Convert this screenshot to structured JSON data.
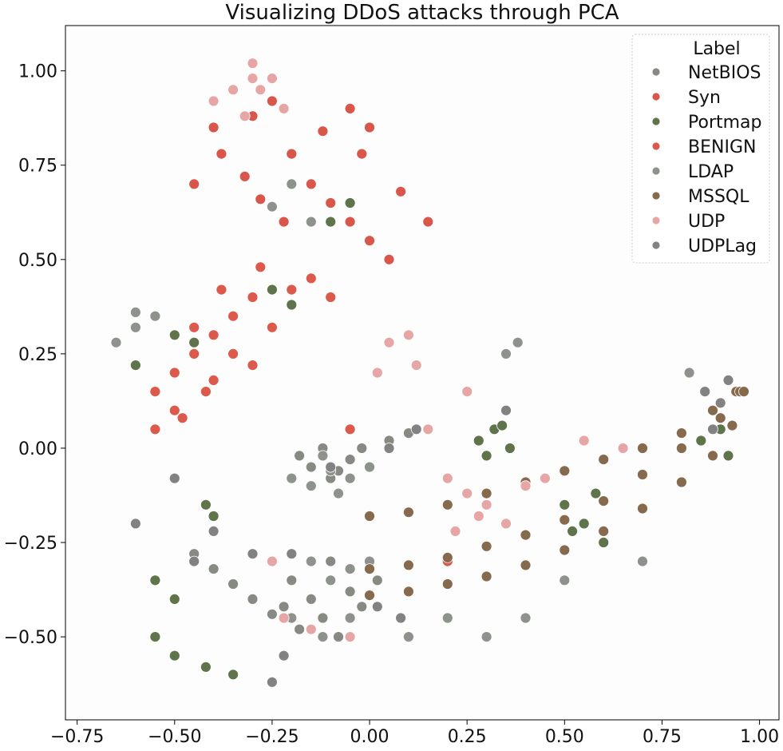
{
  "chart_data": {
    "type": "scatter",
    "title": "Visualizing DDoS attacks through PCA",
    "xlabel": "",
    "ylabel": "",
    "xlim": [
      -0.78,
      1.05
    ],
    "ylim": [
      -0.72,
      1.12
    ],
    "grid": false,
    "legend": {
      "title": "Label",
      "placement": "top-right",
      "entries": [
        "NetBIOS",
        "Syn",
        "Portmap",
        "BENIGN",
        "LDAP",
        "MSSQL",
        "UDP",
        "UDPLag"
      ]
    },
    "x_ticks": [
      {
        "value": -0.75,
        "label": "−0.75"
      },
      {
        "value": -0.5,
        "label": "−0.50"
      },
      {
        "value": -0.25,
        "label": "−0.25"
      },
      {
        "value": 0.0,
        "label": "0.00"
      },
      {
        "value": 0.25,
        "label": "0.25"
      },
      {
        "value": 0.5,
        "label": "0.50"
      },
      {
        "value": 0.75,
        "label": "0.75"
      },
      {
        "value": 1.0,
        "label": "1.00"
      }
    ],
    "y_ticks": [
      {
        "value": -0.5,
        "label": "−0.50"
      },
      {
        "value": -0.25,
        "label": "−0.25"
      },
      {
        "value": 0.0,
        "label": "0.00"
      },
      {
        "value": 0.25,
        "label": "0.25"
      },
      {
        "value": 0.5,
        "label": "0.50"
      },
      {
        "value": 0.75,
        "label": "0.75"
      },
      {
        "value": 1.0,
        "label": "1.00"
      }
    ],
    "series": [
      {
        "name": "NetBIOS",
        "color": "#878a83",
        "points": [
          [
            -0.15,
            -0.05
          ],
          [
            -0.1,
            -0.08
          ],
          [
            -0.05,
            -0.03
          ],
          [
            -0.12,
            0.0
          ],
          [
            -0.08,
            -0.06
          ],
          [
            -0.18,
            -0.02
          ],
          [
            -0.02,
            0.0
          ],
          [
            0.05,
            0.02
          ],
          [
            0.1,
            0.04
          ],
          [
            -0.2,
            -0.35
          ],
          [
            -0.15,
            -0.4
          ],
          [
            -0.1,
            -0.3
          ],
          [
            -0.05,
            -0.38
          ],
          [
            -0.12,
            -0.45
          ],
          [
            -0.08,
            -0.5
          ],
          [
            -0.18,
            -0.48
          ],
          [
            -0.02,
            -0.42
          ],
          [
            0.02,
            -0.35
          ],
          [
            -0.22,
            -0.42
          ],
          [
            -0.45,
            -0.28
          ],
          [
            -0.4,
            -0.32
          ],
          [
            -0.35,
            -0.36
          ],
          [
            -0.3,
            -0.4
          ],
          [
            -0.25,
            -0.44
          ]
        ]
      },
      {
        "name": "Syn",
        "color": "#d9574a",
        "points": [
          [
            -0.35,
            0.95
          ],
          [
            -0.3,
            0.88
          ],
          [
            -0.25,
            0.92
          ],
          [
            -0.4,
            0.85
          ],
          [
            -0.2,
            0.78
          ],
          [
            -0.15,
            0.7
          ],
          [
            -0.1,
            0.65
          ],
          [
            -0.05,
            0.6
          ],
          [
            0.0,
            0.55
          ],
          [
            0.05,
            0.5
          ],
          [
            -0.38,
            0.78
          ],
          [
            -0.32,
            0.72
          ],
          [
            -0.28,
            0.66
          ],
          [
            -0.22,
            0.6
          ],
          [
            -0.45,
            0.7
          ],
          [
            -0.12,
            0.84
          ],
          [
            -0.05,
            0.9
          ],
          [
            0.0,
            0.85
          ],
          [
            -0.02,
            0.78
          ],
          [
            0.08,
            0.68
          ],
          [
            0.15,
            0.6
          ]
        ]
      },
      {
        "name": "Portmap",
        "color": "#5f744a",
        "points": [
          [
            0.28,
            0.02
          ],
          [
            0.32,
            0.05
          ],
          [
            0.36,
            0.0
          ],
          [
            0.3,
            -0.02
          ],
          [
            0.34,
            0.06
          ],
          [
            0.5,
            -0.15
          ],
          [
            0.55,
            -0.2
          ],
          [
            0.6,
            -0.25
          ],
          [
            0.52,
            -0.22
          ],
          [
            0.58,
            -0.12
          ],
          [
            0.85,
            0.02
          ],
          [
            0.9,
            0.05
          ],
          [
            0.92,
            -0.02
          ],
          [
            -0.05,
            0.65
          ],
          [
            -0.1,
            0.6
          ],
          [
            -0.2,
            0.38
          ],
          [
            -0.25,
            0.42
          ],
          [
            -0.45,
            0.28
          ],
          [
            -0.5,
            0.3
          ],
          [
            -0.6,
            0.22
          ],
          [
            -0.55,
            -0.5
          ],
          [
            -0.5,
            -0.55
          ],
          [
            -0.42,
            -0.58
          ],
          [
            -0.35,
            -0.6
          ],
          [
            -0.55,
            -0.35
          ],
          [
            -0.5,
            -0.4
          ],
          [
            -0.4,
            -0.18
          ],
          [
            -0.42,
            -0.15
          ]
        ]
      },
      {
        "name": "BENIGN",
        "color": "#dc5a4c",
        "points": [
          [
            -0.5,
            0.2
          ],
          [
            -0.45,
            0.25
          ],
          [
            -0.4,
            0.3
          ],
          [
            -0.35,
            0.35
          ],
          [
            -0.3,
            0.4
          ],
          [
            -0.25,
            0.32
          ],
          [
            -0.3,
            0.22
          ],
          [
            -0.42,
            0.15
          ],
          [
            -0.5,
            0.1
          ],
          [
            -0.55,
            0.15
          ],
          [
            -0.2,
            0.42
          ],
          [
            -0.15,
            0.45
          ],
          [
            -0.1,
            0.4
          ],
          [
            -0.35,
            0.25
          ],
          [
            -0.48,
            0.08
          ],
          [
            -0.4,
            0.18
          ],
          [
            -0.45,
            0.32
          ],
          [
            -0.38,
            0.42
          ],
          [
            -0.28,
            0.48
          ],
          [
            -0.55,
            0.05
          ],
          [
            -0.05,
            0.05
          ],
          [
            0.3,
            -0.12
          ],
          [
            0.2,
            -0.3
          ]
        ]
      },
      {
        "name": "LDAP",
        "color": "#8e928c",
        "points": [
          [
            -0.2,
            -0.08
          ],
          [
            -0.15,
            -0.1
          ],
          [
            -0.1,
            -0.06
          ],
          [
            -0.05,
            -0.08
          ],
          [
            0.0,
            -0.05
          ],
          [
            -0.12,
            -0.02
          ],
          [
            -0.08,
            -0.12
          ],
          [
            -0.15,
            -0.3
          ],
          [
            -0.1,
            -0.35
          ],
          [
            -0.05,
            -0.32
          ],
          [
            0.0,
            -0.3
          ],
          [
            -0.2,
            -0.45
          ],
          [
            -0.12,
            -0.5
          ],
          [
            -0.05,
            -0.45
          ],
          [
            -0.65,
            0.28
          ],
          [
            -0.6,
            0.32
          ],
          [
            -0.55,
            0.35
          ],
          [
            -0.6,
            0.36
          ],
          [
            -0.25,
            0.64
          ],
          [
            -0.2,
            0.7
          ],
          [
            -0.15,
            0.6
          ],
          [
            0.35,
            0.25
          ],
          [
            0.38,
            0.28
          ],
          [
            0.1,
            -0.5
          ],
          [
            0.2,
            -0.45
          ],
          [
            0.3,
            -0.5
          ],
          [
            0.4,
            -0.45
          ],
          [
            0.82,
            0.2
          ],
          [
            0.7,
            -0.3
          ],
          [
            0.5,
            -0.35
          ]
        ]
      },
      {
        "name": "MSSQL",
        "color": "#856a4e",
        "points": [
          [
            0.0,
            -0.18
          ],
          [
            0.1,
            -0.17
          ],
          [
            0.2,
            -0.15
          ],
          [
            0.3,
            -0.12
          ],
          [
            0.4,
            -0.09
          ],
          [
            0.5,
            -0.06
          ],
          [
            0.6,
            -0.03
          ],
          [
            0.7,
            0.0
          ],
          [
            0.8,
            0.04
          ],
          [
            0.88,
            0.1
          ],
          [
            0.94,
            0.15
          ],
          [
            0.0,
            -0.32
          ],
          [
            0.1,
            -0.31
          ],
          [
            0.2,
            -0.29
          ],
          [
            0.3,
            -0.26
          ],
          [
            0.4,
            -0.23
          ],
          [
            0.5,
            -0.19
          ],
          [
            0.6,
            -0.14
          ],
          [
            0.7,
            -0.07
          ],
          [
            0.8,
            0.0
          ],
          [
            0.9,
            0.08
          ],
          [
            0.95,
            0.15
          ],
          [
            0.0,
            -0.39
          ],
          [
            0.1,
            -0.38
          ],
          [
            0.2,
            -0.36
          ],
          [
            0.3,
            -0.34
          ],
          [
            0.4,
            -0.31
          ],
          [
            0.5,
            -0.27
          ],
          [
            0.6,
            -0.22
          ],
          [
            0.7,
            -0.16
          ],
          [
            0.8,
            -0.09
          ],
          [
            0.88,
            -0.02
          ],
          [
            0.93,
            0.06
          ],
          [
            0.96,
            0.15
          ]
        ]
      },
      {
        "name": "UDP",
        "color": "#e7a6a6",
        "points": [
          [
            -0.35,
            0.95
          ],
          [
            -0.3,
            1.02
          ],
          [
            -0.25,
            0.98
          ],
          [
            -0.4,
            0.92
          ],
          [
            -0.32,
            0.88
          ],
          [
            -0.28,
            0.95
          ],
          [
            -0.22,
            0.9
          ],
          [
            -0.3,
            0.98
          ],
          [
            0.2,
            -0.08
          ],
          [
            0.25,
            -0.12
          ],
          [
            0.3,
            -0.15
          ],
          [
            0.35,
            -0.2
          ],
          [
            0.4,
            -0.1
          ],
          [
            0.45,
            -0.08
          ],
          [
            0.22,
            -0.22
          ],
          [
            0.28,
            -0.18
          ],
          [
            0.15,
            0.05
          ],
          [
            0.25,
            0.15
          ],
          [
            0.05,
            0.28
          ],
          [
            0.1,
            0.3
          ],
          [
            0.12,
            0.22
          ],
          [
            0.02,
            0.2
          ],
          [
            -0.2,
            -0.28
          ],
          [
            -0.25,
            -0.3
          ],
          [
            -0.22,
            -0.45
          ],
          [
            -0.15,
            -0.48
          ],
          [
            -0.05,
            -0.5
          ],
          [
            0.55,
            0.02
          ],
          [
            0.65,
            0.0
          ]
        ]
      },
      {
        "name": "UDPLag",
        "color": "#828282",
        "points": [
          [
            -0.25,
            -0.62
          ],
          [
            -0.45,
            -0.3
          ],
          [
            -0.4,
            -0.22
          ],
          [
            -0.3,
            -0.28
          ],
          [
            -0.2,
            -0.28
          ],
          [
            -0.1,
            -0.05
          ],
          [
            0.05,
            0.0
          ],
          [
            0.12,
            0.05
          ],
          [
            0.9,
            0.12
          ],
          [
            0.88,
            0.05
          ],
          [
            0.92,
            0.18
          ],
          [
            0.86,
            0.15
          ],
          [
            -0.6,
            -0.2
          ],
          [
            -0.5,
            -0.08
          ],
          [
            -0.22,
            -0.55
          ],
          [
            0.02,
            -0.42
          ],
          [
            0.08,
            -0.45
          ],
          [
            0.35,
            0.1
          ]
        ]
      }
    ]
  }
}
